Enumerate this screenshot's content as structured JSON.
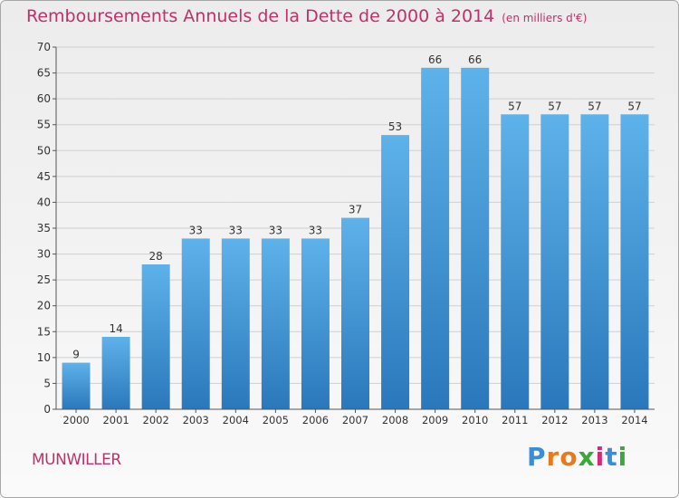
{
  "title": "Remboursements Annuels de la Dette de 2000 à 2014",
  "unit": "(en milliers d'€)",
  "commune": "MUNWILLER",
  "logo": {
    "letters": [
      "P",
      "r",
      "o",
      "x",
      "i",
      "t",
      "i"
    ],
    "colors": [
      "#3a8ed8",
      "#e87a1c",
      "#e87a1c",
      "#3aa83a",
      "#d8287a",
      "#3a8ed8",
      "#3aa83a"
    ]
  },
  "colors": {
    "bar_top": "#5eb2ea",
    "bar_bottom": "#2a78bb",
    "axis": "#555555",
    "grid": "#cfcfcf"
  },
  "chart_data": {
    "type": "bar",
    "categories": [
      "2000",
      "2001",
      "2002",
      "2003",
      "2004",
      "2005",
      "2006",
      "2007",
      "2008",
      "2009",
      "2010",
      "2011",
      "2012",
      "2013",
      "2014"
    ],
    "values": [
      9,
      14,
      28,
      33,
      33,
      33,
      33,
      37,
      53,
      66,
      66,
      57,
      57,
      57,
      57
    ],
    "ylim": [
      0,
      70
    ],
    "yticks": [
      0,
      5,
      10,
      15,
      20,
      25,
      30,
      35,
      40,
      45,
      50,
      55,
      60,
      65,
      70
    ],
    "grid": true
  }
}
